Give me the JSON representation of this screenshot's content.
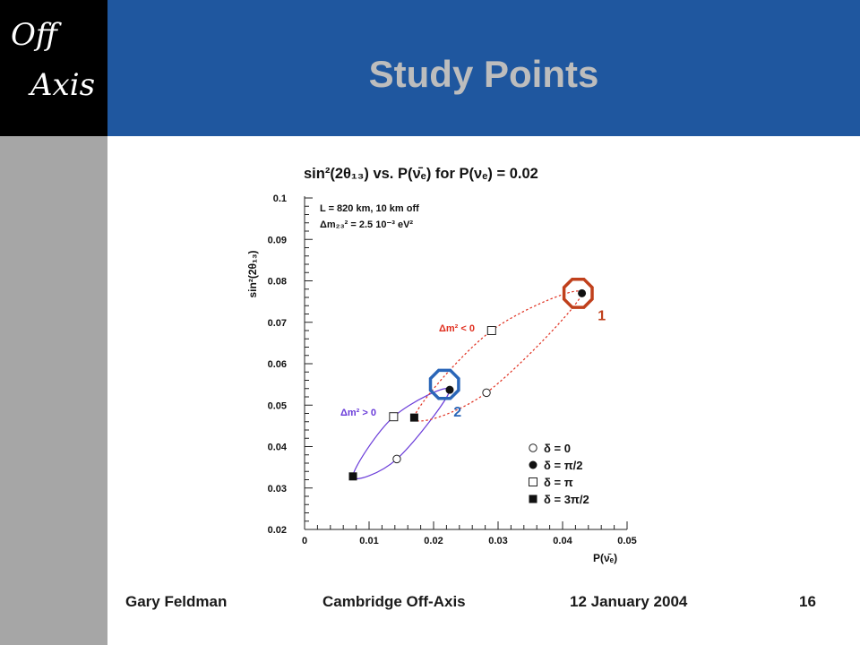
{
  "logo": {
    "line1": "Off",
    "line2": "Axis"
  },
  "slide": {
    "title": "Study Points"
  },
  "footer": {
    "author": "Gary Feldman",
    "talk": "Cambridge Off-Axis",
    "date": "12 January 2004",
    "page": "16"
  },
  "colors": {
    "header": "#1f579f",
    "sidebar": "#a6a6a6",
    "normal_hierarchy": "#6a3cd9",
    "inverted_hierarchy": "#e03020",
    "marker1": "#c0401c",
    "marker2": "#2a66b8"
  },
  "chart_data": {
    "type": "scatter",
    "title": "sin²(2θ₁₃) vs. P(ν̄ₑ) for P(νₑ) = 0.02",
    "xlabel": "P(ν̄ₑ)",
    "ylabel": "sin²(2θ₁₃)",
    "xlim": [
      0,
      0.05
    ],
    "ylim": [
      0.02,
      0.1
    ],
    "x_ticks": [
      "0",
      "0.01",
      "0.02",
      "0.03",
      "0.04",
      "0.05"
    ],
    "y_ticks": [
      "0.02",
      "0.03",
      "0.04",
      "0.05",
      "0.06",
      "0.07",
      "0.08",
      "0.09",
      "0.1"
    ],
    "info_lines": [
      "L = 820 km, 10 km off",
      "Δm₂₃² = 2.5 10⁻³ eV²"
    ],
    "legend": [
      {
        "marker": "open-circle",
        "label": "δ = 0"
      },
      {
        "marker": "filled-circle",
        "label": "δ = π/2"
      },
      {
        "marker": "open-square",
        "label": "δ = π"
      },
      {
        "marker": "filled-square",
        "label": "δ = 3π/2"
      }
    ],
    "series": [
      {
        "name": "Δm² > 0",
        "points": [
          {
            "delta": "0",
            "x": 0.0143,
            "y": 0.037
          },
          {
            "delta": "π/2",
            "x": 0.0225,
            "y": 0.0537
          },
          {
            "delta": "π",
            "x": 0.0138,
            "y": 0.0472
          },
          {
            "delta": "3π/2",
            "x": 0.0075,
            "y": 0.0328
          }
        ]
      },
      {
        "name": "Δm² < 0",
        "points": [
          {
            "delta": "0",
            "x": 0.0282,
            "y": 0.053
          },
          {
            "delta": "π/2",
            "x": 0.043,
            "y": 0.077
          },
          {
            "delta": "π",
            "x": 0.029,
            "y": 0.068
          },
          {
            "delta": "3π/2",
            "x": 0.017,
            "y": 0.047
          }
        ]
      }
    ],
    "highlights": [
      {
        "label": "1",
        "x": 0.0424,
        "y": 0.077
      },
      {
        "label": "2",
        "x": 0.0217,
        "y": 0.055
      }
    ]
  }
}
